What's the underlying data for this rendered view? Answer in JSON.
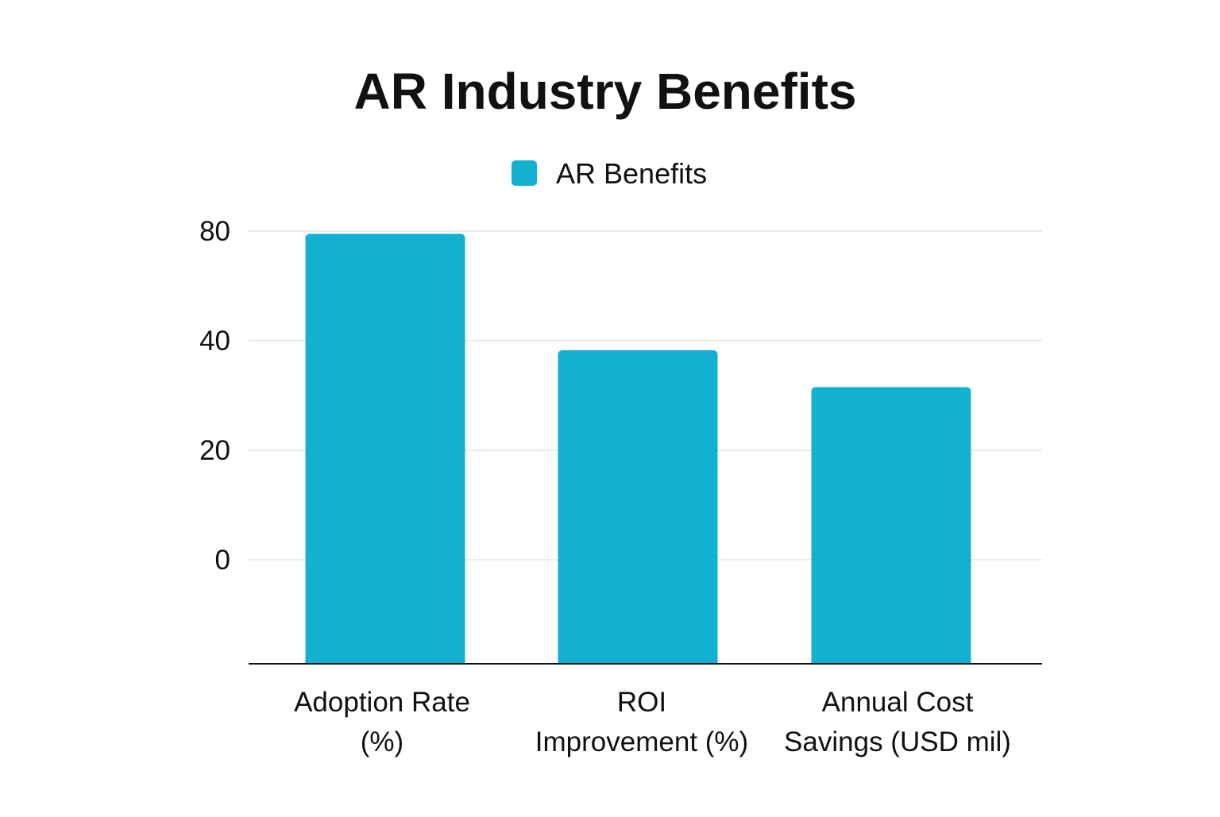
{
  "chart_data": {
    "type": "bar",
    "title": "AR Industry Benefits",
    "xlabel": "",
    "ylabel": "",
    "categories": [
      [
        "Adoption Rate",
        "(%)"
      ],
      [
        "ROI",
        "Improvement (%)"
      ],
      [
        "Annual Cost",
        "Savings (USD mil)"
      ]
    ],
    "series": [
      {
        "name": "AR Benefits",
        "values": [
          79,
          36.5,
          23
        ],
        "color": "#13b1d1"
      }
    ],
    "y_ticks": [
      {
        "label": "80",
        "value": 80
      },
      {
        "label": "40",
        "value": 40
      },
      {
        "label": "20",
        "value": 20
      },
      {
        "label": "0",
        "value": 0
      }
    ],
    "grid": true,
    "legend_position": "top-center",
    "colors": {
      "bar": "#13b1d1",
      "grid": "#e6e6e6",
      "axis": "#111111",
      "text": "#111111"
    }
  }
}
